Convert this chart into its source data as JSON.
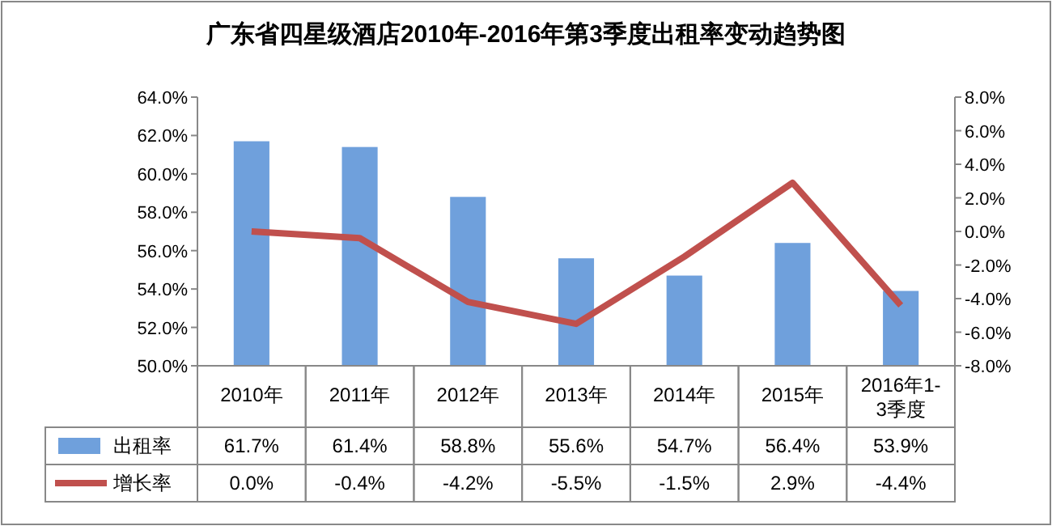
{
  "chart_data": {
    "type": "bar",
    "title": "广东省四星级酒店2010年-2016年第3季度出租率变动趋势图",
    "categories": [
      "2010年",
      "2011年",
      "2012年",
      "2013年",
      "2014年",
      "2015年",
      "2016年1-3季度"
    ],
    "series": [
      {
        "name": "出租率",
        "color": "#6fa0dc",
        "values": [
          61.7,
          61.4,
          58.8,
          55.6,
          54.7,
          56.4,
          53.9
        ],
        "value_labels": [
          "61.7%",
          "61.4%",
          "58.8%",
          "55.6%",
          "54.7%",
          "56.4%",
          "53.9%"
        ]
      },
      {
        "name": "增长率",
        "type": "line",
        "axis": "y2",
        "color": "#c0504d",
        "values": [
          0.0,
          -0.4,
          -4.2,
          -5.5,
          -1.5,
          2.9,
          -4.4
        ],
        "value_labels": [
          "0.0%",
          "-0.4%",
          "-4.2%",
          "-5.5%",
          "-1.5%",
          "2.9%",
          "-4.4%"
        ]
      }
    ],
    "ylim": [
      50,
      64
    ],
    "yticks": [
      {
        "value": 50,
        "label": "50.0%"
      },
      {
        "value": 52,
        "label": "52.0%"
      },
      {
        "value": 54,
        "label": "54.0%"
      },
      {
        "value": 56,
        "label": "56.0%"
      },
      {
        "value": 58,
        "label": "58.0%"
      },
      {
        "value": 60,
        "label": "60.0%"
      },
      {
        "value": 62,
        "label": "62.0%"
      },
      {
        "value": 64,
        "label": "64.0%"
      }
    ],
    "y2lim": [
      -8,
      8
    ],
    "y2ticks": [
      {
        "value": -8,
        "label": "-8.0%"
      },
      {
        "value": -6,
        "label": "-6.0%"
      },
      {
        "value": -4,
        "label": "-4.0%"
      },
      {
        "value": -2,
        "label": "-2.0%"
      },
      {
        "value": 0,
        "label": "0.0%"
      },
      {
        "value": 2,
        "label": "2.0%"
      },
      {
        "value": 4,
        "label": "4.0%"
      },
      {
        "value": 6,
        "label": "6.0%"
      },
      {
        "value": 8,
        "label": "8.0%"
      }
    ],
    "legend": "bottom"
  }
}
